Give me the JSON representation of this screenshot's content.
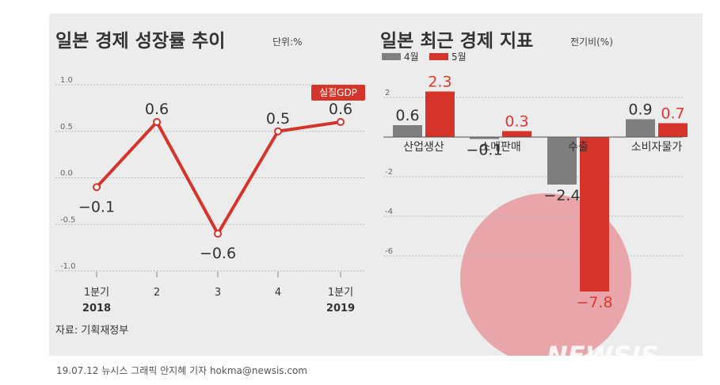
{
  "colors": {
    "accent_red": "#d4342a",
    "gray": "#7f7f7f",
    "background": "#ececec"
  },
  "source": "자료: 기획재정부",
  "credit": "19.07.12 뉴시스 그래픽 안지혜 기자 hokma@newsis.com",
  "watermark": "NEWSIS",
  "chart_data": [
    {
      "type": "line",
      "title": "일본 경제 성장률 추이",
      "unit": "단위:%",
      "series": [
        {
          "name": "실질GDP",
          "values": [
            -0.1,
            0.6,
            -0.6,
            0.5,
            0.6
          ]
        }
      ],
      "data_labels": [
        "−0.1",
        "0.6",
        "−0.6",
        "0.5",
        "0.6"
      ],
      "x_ticks": [
        {
          "line1": "1분기",
          "line2": "2018"
        },
        {
          "line1": "2",
          "line2": ""
        },
        {
          "line1": "3",
          "line2": ""
        },
        {
          "line1": "4",
          "line2": ""
        },
        {
          "line1": "1분기",
          "line2": "2019"
        }
      ],
      "y_ticks": [
        "1.0",
        "0.5",
        "0.0",
        "-0.5",
        "-1.0"
      ],
      "ylim": [
        -1.0,
        1.0
      ],
      "grid": true
    },
    {
      "type": "bar",
      "title": "일본 최근 경제 지표",
      "unit": "전기비(%)",
      "categories": [
        "산업생산",
        "소매판매",
        "수출",
        "소비자물가"
      ],
      "series": [
        {
          "name": "4월",
          "values": [
            0.6,
            -0.1,
            -2.4,
            0.9
          ],
          "labels": [
            "0.6",
            "−0.1",
            "−2.4",
            "0.9"
          ]
        },
        {
          "name": "5월",
          "values": [
            2.3,
            0.3,
            -7.8,
            0.7
          ],
          "labels": [
            "2.3",
            "0.3",
            "−7.8",
            "0.7"
          ]
        }
      ],
      "y_ticks": [
        "2",
        "-2",
        "-4",
        "-6"
      ],
      "ylim": [
        -8,
        2.6
      ],
      "grid": true,
      "legend": "top-left"
    }
  ]
}
